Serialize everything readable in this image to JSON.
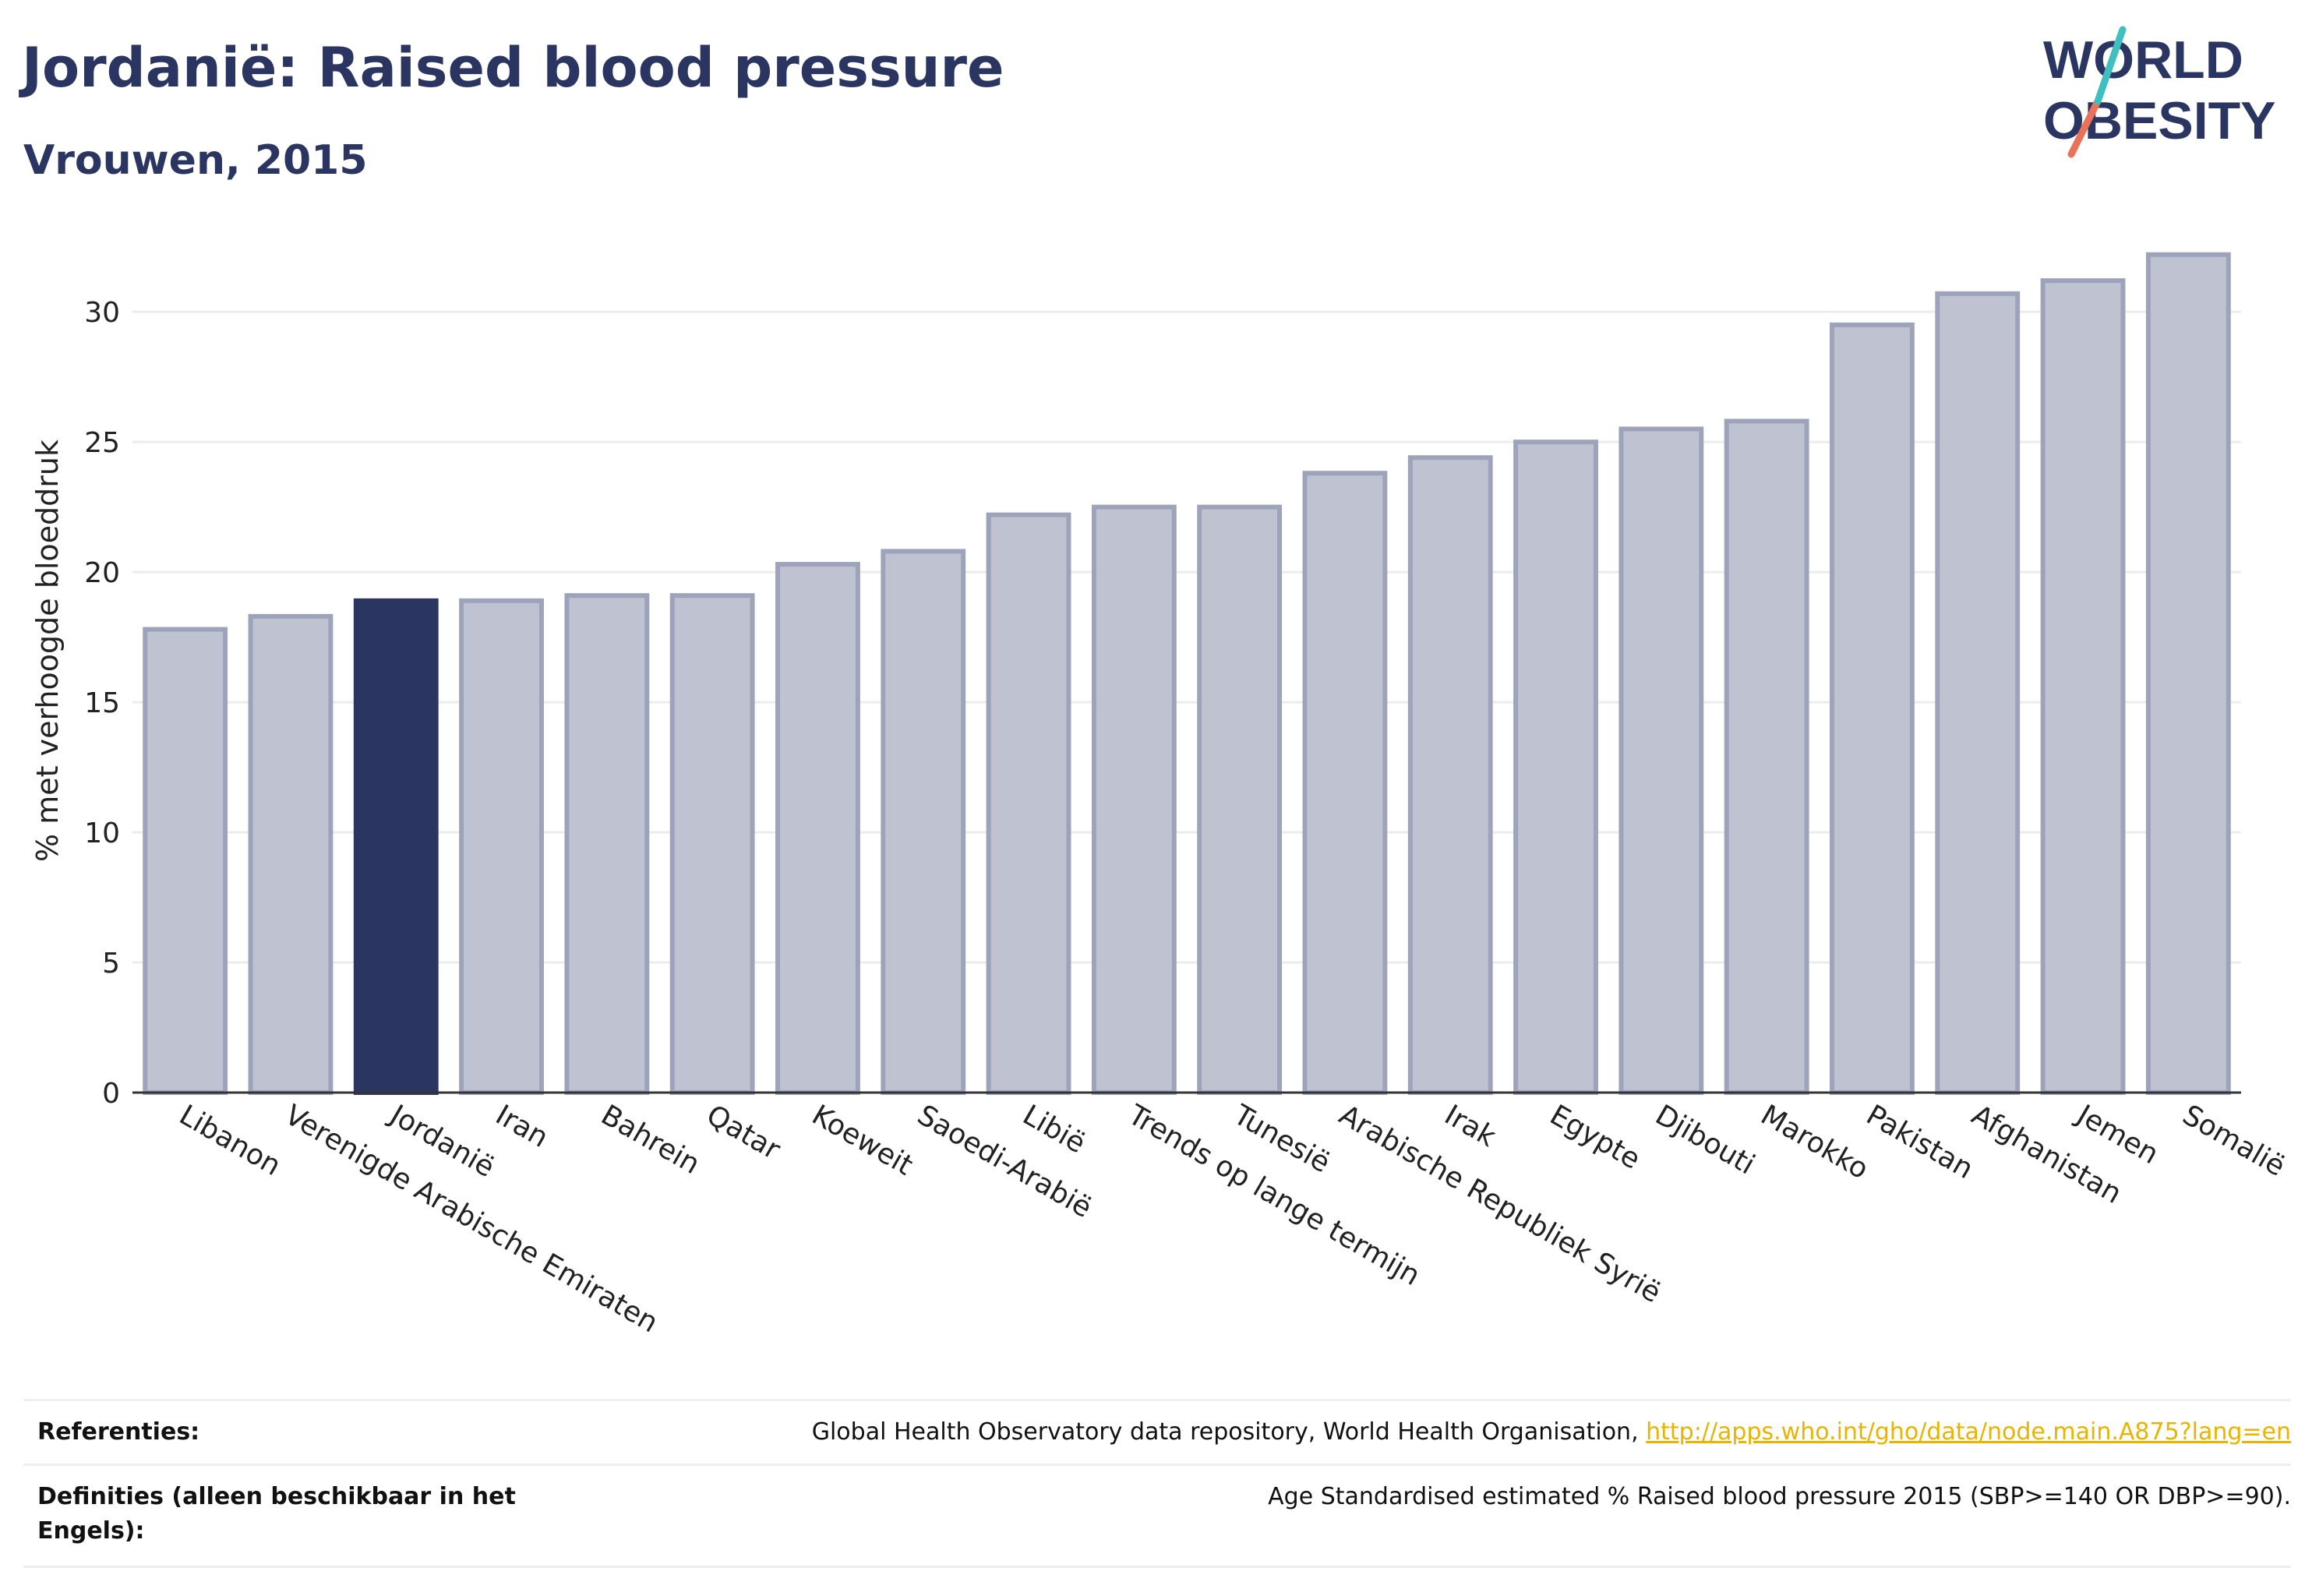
{
  "header": {
    "title": "Jordanië: Raised blood pressure",
    "subtitle": "Vrouwen, 2015"
  },
  "logo": {
    "line1": "WORLD",
    "line2": "OBESITY",
    "colors": {
      "text": "#2b3561",
      "slash_teal": "#3fbfbf",
      "slash_coral": "#e8735a"
    }
  },
  "chart_data": {
    "type": "bar",
    "title": "",
    "xlabel": "",
    "ylabel": "% met verhoogde bloeddruk",
    "ylim": [
      0,
      33
    ],
    "yticks": [
      0,
      5,
      10,
      15,
      20,
      25,
      30
    ],
    "grid": true,
    "highlight": "Jordanië",
    "colors": {
      "bar": "#bfc2d0",
      "bar_edge": "#9da3bb",
      "highlight": "#2b3561",
      "grid": "#ececec",
      "axis": "#333333"
    },
    "categories": [
      "Libanon",
      "Verenigde Arabische Emiraten",
      "Jordanië",
      "Iran",
      "Bahrein",
      "Qatar",
      "Koeweit",
      "Saoedi-Arabië",
      "Libië",
      "Trends op lange termijn",
      "Tunesië",
      "Arabische Republiek Syrië",
      "Irak",
      "Egypte",
      "Djibouti",
      "Marokko",
      "Pakistan",
      "Afghanistan",
      "Jemen",
      "Somalië"
    ],
    "values": [
      17.8,
      18.3,
      18.9,
      18.9,
      19.1,
      19.1,
      20.3,
      20.8,
      22.2,
      22.5,
      22.5,
      23.8,
      24.4,
      25.0,
      25.5,
      25.8,
      29.5,
      30.7,
      31.2,
      32.2
    ]
  },
  "references": {
    "ref_label": "Referenties:",
    "ref_text": "Global Health Observatory data repository, World Health Organisation, ",
    "ref_link": "http://apps.who.int/gho/data/node.main.A875?lang=en",
    "def_label": "Definities (alleen beschikbaar in het Engels):",
    "def_text": "Age Standardised estimated % Raised blood pressure 2015 (SBP>=140 OR DBP>=90)."
  }
}
